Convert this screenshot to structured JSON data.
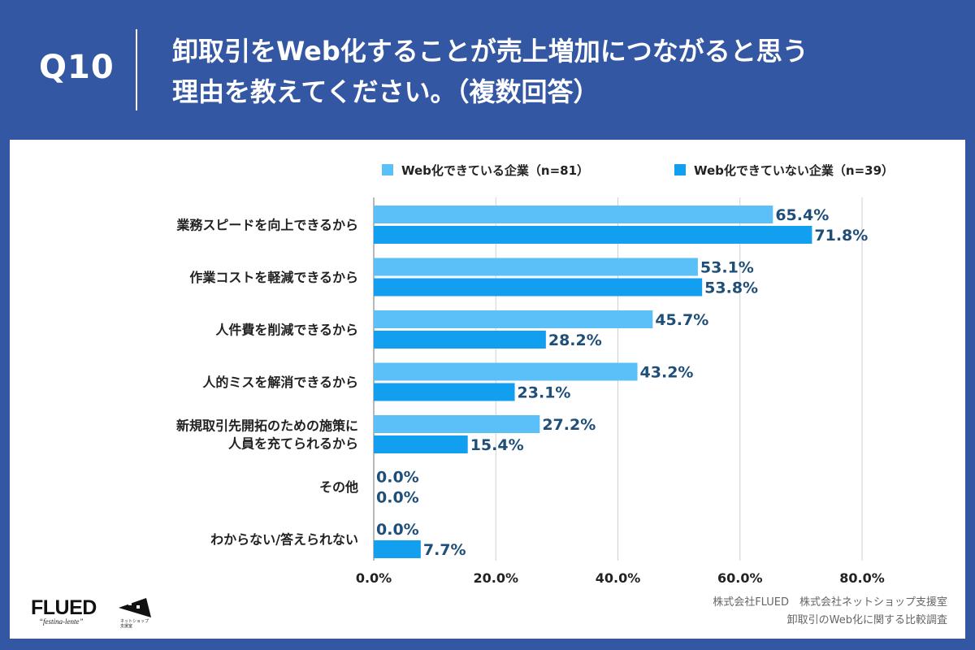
{
  "header": {
    "qnum": "Q10",
    "title_line1": "卸取引をWeb化することが売上増加につながると思う",
    "title_line2": "理由を教えてください。（複数回答）"
  },
  "footer": {
    "logo": "FLUED",
    "tagline": "“festina-lente”",
    "logo2_text_line1": "ネットショップ",
    "logo2_text_line2": "支援室",
    "source_line1": "株式会社FLUED　株式会社ネットショップ支援室",
    "source_line2": "卸取引のWeb化に関する比較調査"
  },
  "colors": {
    "background": "#3457a4",
    "series1": "#5bc0f8",
    "series2": "#139ff0",
    "value_label": "#1f4e79"
  },
  "chart_data": {
    "type": "bar",
    "orientation": "horizontal",
    "categories": [
      [
        "業務スピードを向上できるから"
      ],
      [
        "作業コストを軽減できるから"
      ],
      [
        "人件費を削減できるから"
      ],
      [
        "人的ミスを解消できるから"
      ],
      [
        "新規取引先開拓のための施策に",
        "人員を充てられるから"
      ],
      [
        "その他"
      ],
      [
        "わからない/答えられない"
      ]
    ],
    "series": [
      {
        "name": "Web化できている企業（n=81）",
        "values": [
          65.4,
          53.1,
          45.7,
          43.2,
          27.2,
          0.0,
          0.0
        ]
      },
      {
        "name": "Web化できていない企業（n=39）",
        "values": [
          71.8,
          53.8,
          28.2,
          23.1,
          15.4,
          0.0,
          7.7
        ]
      }
    ],
    "value_suffix": "%",
    "xlim": [
      0,
      80
    ],
    "xticks": [
      0,
      20,
      40,
      60,
      80
    ],
    "xtick_labels": [
      "0.0%",
      "20.0%",
      "40.0%",
      "60.0%",
      "80.0%"
    ],
    "grid": true,
    "legend_position": "top"
  }
}
